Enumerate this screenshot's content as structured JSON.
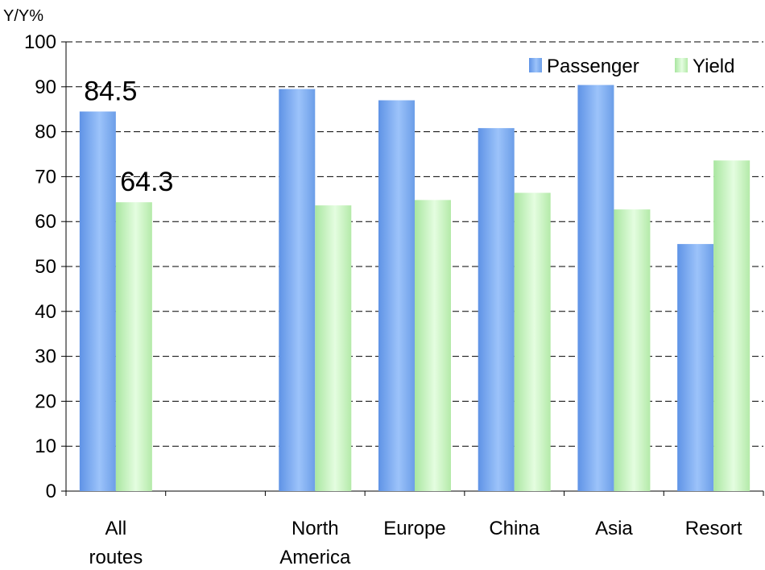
{
  "chart_data": {
    "type": "bar",
    "y_unit_label": "Y/Y%",
    "categories": [
      [
        "All",
        "routes"
      ],
      [
        "",
        ""
      ],
      [
        "North",
        "America"
      ],
      [
        "Europe"
      ],
      [
        "China"
      ],
      [
        "Asia"
      ],
      [
        "Resort"
      ]
    ],
    "series": [
      {
        "name": "Passenger",
        "values": [
          84.5,
          null,
          89.5,
          87.0,
          80.8,
          90.4,
          55.0
        ],
        "color": "#7aaaf0"
      },
      {
        "name": "Yield",
        "values": [
          64.3,
          null,
          63.6,
          64.8,
          66.4,
          62.7,
          73.6
        ],
        "color": "#c6f2bf"
      }
    ],
    "data_labels": [
      {
        "series": 0,
        "index": 0,
        "text": "84.5"
      },
      {
        "series": 1,
        "index": 0,
        "text": "64.3"
      }
    ],
    "ylim": [
      0,
      100
    ],
    "yticks": [
      0,
      10,
      20,
      30,
      40,
      50,
      60,
      70,
      80,
      90,
      100
    ],
    "grid": "horizontal dashed",
    "legend_position": "top-right"
  }
}
